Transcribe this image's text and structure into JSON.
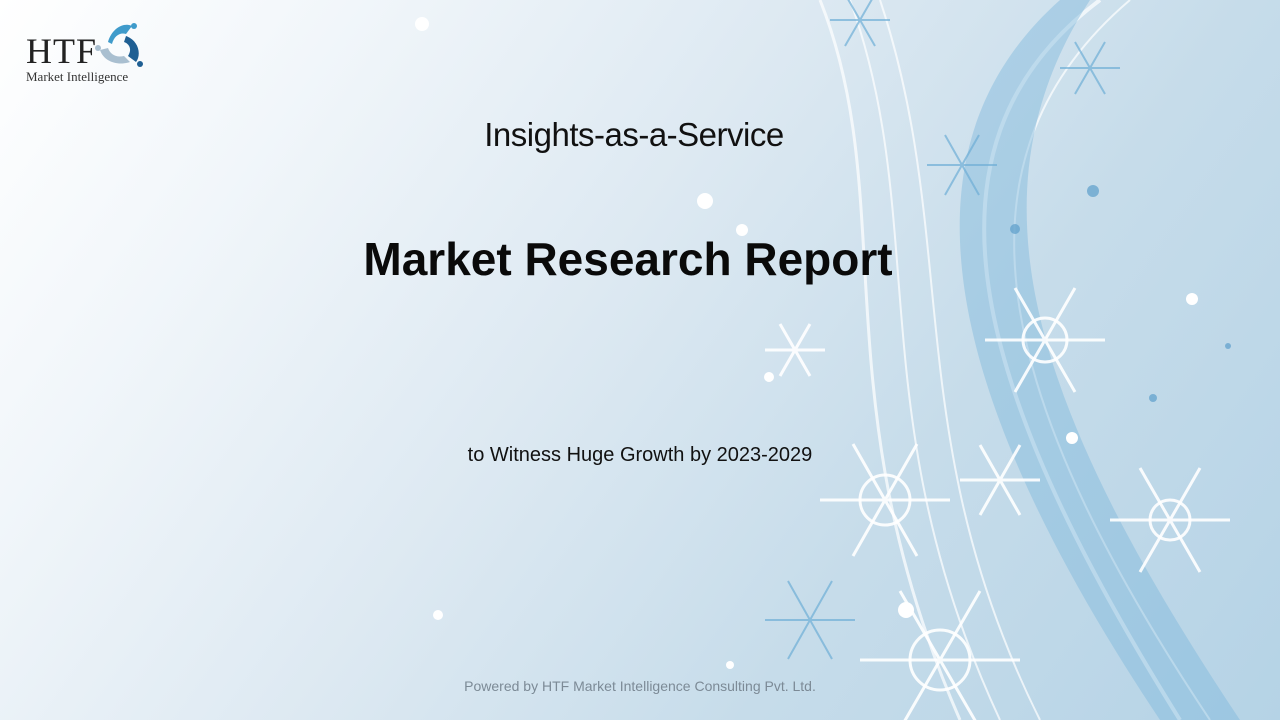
{
  "logo": {
    "text": "HTF",
    "subtext": "Market Intelligence"
  },
  "slide": {
    "subtitle": "Insights-as-a-Service",
    "title": "Market Research Report",
    "tagline": "to Witness Huge Growth by 2023-2029",
    "footer": "Powered by HTF Market Intelligence Consulting Pvt. Ltd."
  },
  "colors": {
    "accent": "#3a8fc4",
    "background": "#c6dcea"
  }
}
